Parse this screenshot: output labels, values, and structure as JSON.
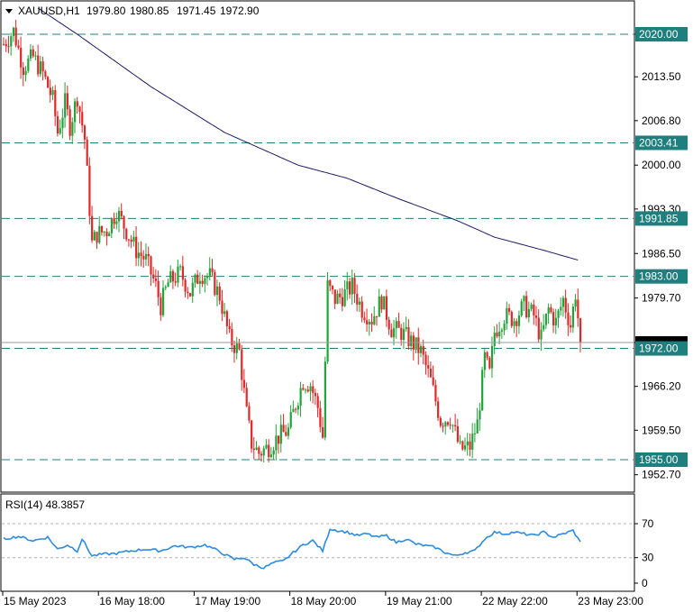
{
  "header": {
    "symbol": "XAUUSD,H1",
    "open": "1979.80",
    "high": "1980.85",
    "low": "1971.45",
    "close": "1972.90"
  },
  "rsi_header": {
    "label": "RSI(14) 48.3857"
  },
  "colors": {
    "bull": "#22a33a",
    "bear": "#e02828",
    "ma": "#1a1a66",
    "level": "#1f7f7f",
    "rsi": "#2b8be0",
    "frame": "#000000"
  },
  "chart_data": [
    {
      "type": "candlestick",
      "title": "XAUUSD,H1",
      "ylim": [
        1950.0,
        2024.0
      ],
      "y_ticks": [
        "2020.00",
        "2013.50",
        "2006.80",
        "2000.00",
        "1993.30",
        "1986.50",
        "1979.70",
        "1972.90",
        "1966.20",
        "1959.50",
        "1952.70"
      ],
      "x_ticks": [
        "15 May 2023",
        "16 May 18:00",
        "17 May 19:00",
        "18 May 20:00",
        "19 May 21:00",
        "22 May 22:00",
        "23 May 23:00"
      ],
      "horizontal_levels": [
        "2020.00",
        "2003.41",
        "1991.85",
        "1983.00",
        "1972.00",
        "1955.00"
      ],
      "price_anchors": [
        [
          0,
          2018.5
        ],
        [
          4,
          2020.5
        ],
        [
          8,
          2015.0
        ],
        [
          12,
          2016.5
        ],
        [
          16,
          2014.0
        ],
        [
          20,
          2010.0
        ],
        [
          22,
          2005.0
        ],
        [
          25,
          2009.5
        ],
        [
          27,
          2006.0
        ],
        [
          30,
          2010.5
        ],
        [
          33,
          2004.0
        ],
        [
          36,
          1988.0
        ],
        [
          38,
          1989.5
        ],
        [
          42,
          1990.0
        ],
        [
          46,
          1993.0
        ],
        [
          50,
          1990.0
        ],
        [
          54,
          1987.0
        ],
        [
          58,
          1985.5
        ],
        [
          62,
          1981.5
        ],
        [
          64,
          1978.5
        ],
        [
          67,
          1982.0
        ],
        [
          72,
          1983.5
        ],
        [
          76,
          1980.5
        ],
        [
          80,
          1983.5
        ],
        [
          84,
          1983.0
        ],
        [
          88,
          1980.0
        ],
        [
          92,
          1973.5
        ],
        [
          96,
          1971.5
        ],
        [
          99,
          1962.0
        ],
        [
          101,
          1957.5
        ],
        [
          104,
          1956.0
        ],
        [
          108,
          1957.0
        ],
        [
          112,
          1958.5
        ],
        [
          116,
          1959.5
        ],
        [
          119,
          1963.5
        ],
        [
          122,
          1967.0
        ],
        [
          125,
          1966.5
        ],
        [
          128,
          1963.0
        ],
        [
          130,
          1958.5
        ],
        [
          132,
          1981.5
        ],
        [
          135,
          1979.5
        ],
        [
          138,
          1980.0
        ],
        [
          142,
          1981.5
        ],
        [
          146,
          1978.0
        ],
        [
          150,
          1976.5
        ],
        [
          154,
          1979.5
        ],
        [
          158,
          1975.0
        ],
        [
          162,
          1974.5
        ],
        [
          166,
          1973.0
        ],
        [
          170,
          1971.5
        ],
        [
          174,
          1967.0
        ],
        [
          178,
          1961.0
        ],
        [
          182,
          1961.5
        ],
        [
          186,
          1956.5
        ],
        [
          190,
          1957.0
        ],
        [
          193,
          1960.5
        ],
        [
          196,
          1970.5
        ],
        [
          198,
          1968.0
        ],
        [
          200,
          1974.5
        ],
        [
          204,
          1977.0
        ],
        [
          208,
          1976.5
        ],
        [
          212,
          1978.5
        ],
        [
          216,
          1977.0
        ],
        [
          219,
          1973.5
        ],
        [
          222,
          1978.0
        ],
        [
          225,
          1976.0
        ],
        [
          228,
          1979.5
        ],
        [
          231,
          1975.5
        ],
        [
          233,
          1980.5
        ],
        [
          235,
          1972.9
        ]
      ],
      "moving_average": [
        [
          14,
          2024.0
        ],
        [
          30,
          2020.0
        ],
        [
          60,
          2012.0
        ],
        [
          90,
          2005.0
        ],
        [
          120,
          2000.0
        ],
        [
          140,
          1998.0
        ],
        [
          160,
          1995.0
        ],
        [
          185,
          1991.5
        ],
        [
          200,
          1989.0
        ],
        [
          220,
          1987.0
        ],
        [
          234,
          1985.5
        ]
      ]
    },
    {
      "type": "line",
      "title": "RSI(14) 48.3857",
      "ylim": [
        0,
        100
      ],
      "y_ticks": [
        "70",
        "30",
        "0"
      ],
      "levels": [
        "70",
        "30"
      ],
      "points": [
        [
          0,
          52
        ],
        [
          6,
          55
        ],
        [
          12,
          50
        ],
        [
          18,
          54
        ],
        [
          22,
          40
        ],
        [
          26,
          45
        ],
        [
          30,
          38
        ],
        [
          32,
          52
        ],
        [
          36,
          32
        ],
        [
          40,
          34
        ],
        [
          46,
          35
        ],
        [
          52,
          38
        ],
        [
          58,
          40
        ],
        [
          64,
          38
        ],
        [
          70,
          44
        ],
        [
          76,
          42
        ],
        [
          82,
          45
        ],
        [
          86,
          40
        ],
        [
          90,
          34
        ],
        [
          94,
          28
        ],
        [
          98,
          30
        ],
        [
          102,
          22
        ],
        [
          106,
          18
        ],
        [
          110,
          24
        ],
        [
          114,
          26
        ],
        [
          118,
          36
        ],
        [
          122,
          45
        ],
        [
          126,
          50
        ],
        [
          130,
          38
        ],
        [
          133,
          64
        ],
        [
          136,
          62
        ],
        [
          140,
          60
        ],
        [
          144,
          56
        ],
        [
          148,
          58
        ],
        [
          152,
          54
        ],
        [
          156,
          56
        ],
        [
          160,
          48
        ],
        [
          164,
          52
        ],
        [
          168,
          46
        ],
        [
          172,
          44
        ],
        [
          176,
          42
        ],
        [
          180,
          36
        ],
        [
          184,
          32
        ],
        [
          188,
          36
        ],
        [
          192,
          38
        ],
        [
          196,
          52
        ],
        [
          200,
          60
        ],
        [
          204,
          58
        ],
        [
          208,
          60
        ],
        [
          212,
          58
        ],
        [
          216,
          56
        ],
        [
          220,
          60
        ],
        [
          224,
          54
        ],
        [
          228,
          58
        ],
        [
          232,
          62
        ],
        [
          235,
          48
        ]
      ]
    }
  ]
}
